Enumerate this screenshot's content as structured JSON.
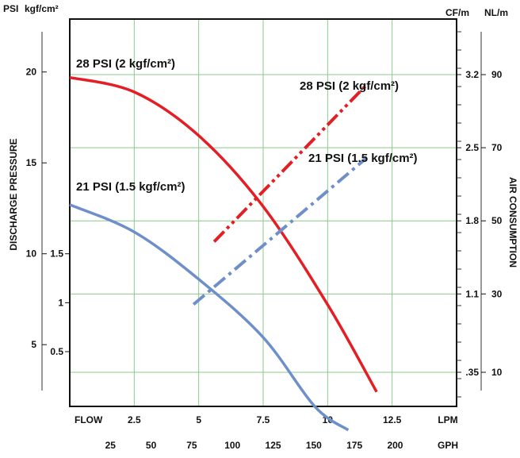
{
  "chart_data": {
    "type": "line",
    "units": {
      "psi": "PSI",
      "kgf": "kgf/cm²",
      "cfm": "CF/m",
      "nlm": "NL/m",
      "flow": "FLOW",
      "lpm": "LPM",
      "gph": "GPH"
    },
    "left_axis_title": "DISCHARGE PRESSURE",
    "right_axis_title": "AIR CONSUMPTION",
    "x_lpm_ticks": [
      "2.5",
      "5",
      "7.5",
      "10",
      "12.5"
    ],
    "x_gph_ticks": [
      "25",
      "50",
      "75",
      "100",
      "125",
      "150",
      "175",
      "200"
    ],
    "psi_ticks": [
      "20",
      "15",
      "10",
      "5"
    ],
    "kgf_ticks": [
      "1.5",
      "1",
      "0.5"
    ],
    "cfm_ticks": [
      "3.2",
      "2.5",
      "1.8",
      "1.1",
      ".35"
    ],
    "nlm_ticks": [
      "90",
      "70",
      "50",
      "30",
      "10"
    ],
    "grid": true,
    "series": [
      {
        "name": "28 PSI (2 kgf/cm²)",
        "kind": "pressure",
        "color": "#e31e24",
        "dash": "solid",
        "points": [
          [
            0,
            19.7
          ],
          [
            2.5,
            18.9
          ],
          [
            5,
            16.5
          ],
          [
            7.5,
            12.6
          ],
          [
            10,
            7.2
          ],
          [
            11.9,
            2.4
          ]
        ]
      },
      {
        "name": "21 PSI (1.5 kgf/cm²)",
        "kind": "pressure",
        "color": "#6f8fc9",
        "dash": "solid",
        "points": [
          [
            0,
            12.7
          ],
          [
            2.5,
            11.2
          ],
          [
            5,
            8.6
          ],
          [
            7.5,
            5.4
          ],
          [
            9.5,
            1.6
          ],
          [
            10.8,
            0.3
          ]
        ]
      },
      {
        "name": "28 PSI (2 kgf/cm²)",
        "kind": "air",
        "color": "#e31e24",
        "dash": "dashdotdot",
        "points": [
          [
            5.6,
            1.6
          ],
          [
            11.5,
            3.1
          ]
        ]
      },
      {
        "name": "21 PSI (1.5 kgf/cm²)",
        "kind": "air",
        "color": "#6f8fc9",
        "dash": "dashdot",
        "points": [
          [
            4.8,
            1.0
          ],
          [
            11.5,
            2.4
          ]
        ]
      }
    ]
  }
}
